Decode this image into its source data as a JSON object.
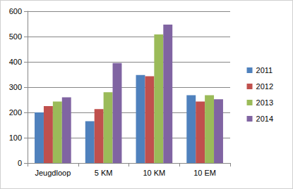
{
  "chart_data": {
    "type": "bar",
    "categories": [
      "Jeugdloop",
      "5 KM",
      "10 KM",
      "10 EM"
    ],
    "series": [
      {
        "name": "2011",
        "color": "#4f81bd",
        "values": [
          200,
          165,
          348,
          268
        ]
      },
      {
        "name": "2012",
        "color": "#c0504d",
        "values": [
          225,
          213,
          343,
          243
        ]
      },
      {
        "name": "2013",
        "color": "#9bbb59",
        "values": [
          243,
          280,
          508,
          268
        ]
      },
      {
        "name": "2014",
        "color": "#8064a2",
        "values": [
          260,
          395,
          547,
          252
        ]
      }
    ],
    "ylim": [
      0,
      600
    ],
    "yticks": [
      0,
      100,
      200,
      300,
      400,
      500,
      600
    ],
    "grid": true,
    "legend": "right"
  }
}
